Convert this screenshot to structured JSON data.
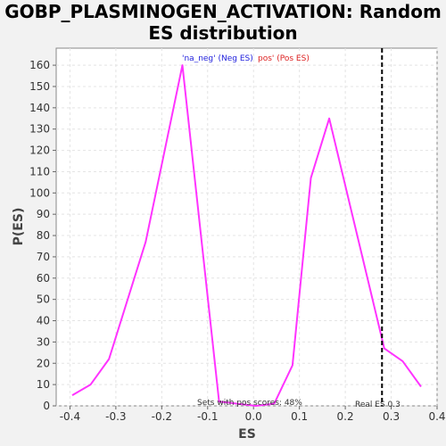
{
  "chart_data": {
    "type": "line",
    "title_line1": "GOBP_PLASMINOGEN_ACTIVATION: Random",
    "title_line2": "ES distribution",
    "xlabel": "ES",
    "ylabel": "P(ES)",
    "xlim": [
      -0.43,
      0.4
    ],
    "ylim": [
      0,
      168
    ],
    "xticks": [
      -0.4,
      -0.3,
      -0.2,
      -0.1,
      0.0,
      0.1,
      0.2,
      0.3,
      0.4
    ],
    "xtick_labels": [
      "-0.4",
      "-0.3",
      "-0.2",
      "-0.1",
      "0.0",
      "0.1",
      "0.2",
      "0.3",
      "0.4"
    ],
    "yticks": [
      0,
      10,
      20,
      30,
      40,
      50,
      60,
      70,
      80,
      90,
      100,
      110,
      120,
      130,
      140,
      150,
      160
    ],
    "grid": true,
    "series": [
      {
        "color": "#ff33ff",
        "x": [
          -0.395,
          -0.355,
          -0.315,
          -0.235,
          -0.155,
          -0.075,
          -0.035,
          0.005,
          0.045,
          0.085,
          0.125,
          0.165,
          0.285,
          0.325,
          0.365
        ],
        "y": [
          5,
          10,
          22,
          77,
          160,
          2,
          1,
          0,
          1,
          19,
          107,
          135,
          27,
          21,
          9
        ]
      }
    ],
    "real_es": 0.28,
    "real_es_color": "#000000",
    "legend": {
      "neg_label": "'na_neg' (Neg ES)",
      "neg_color": "#2222dd",
      "pos_label": "pos' (Pos ES)",
      "pos_color": "#dd2222"
    },
    "annotations": {
      "pos_scores": "Sets with pos scores: 48%",
      "real_es": "Real ES 0.3"
    }
  }
}
